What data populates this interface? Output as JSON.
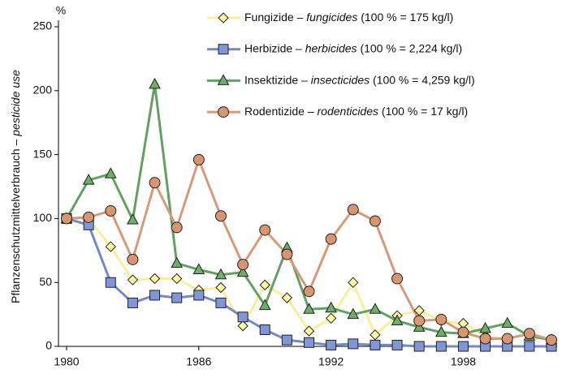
{
  "chart_data": {
    "type": "line",
    "y_unit": "%",
    "ylabel": "Pflanzenschutzmittelverbrauch",
    "ylabel_en": "pesticide use",
    "separator": "–",
    "x": [
      1980,
      1981,
      1982,
      1983,
      1984,
      1985,
      1986,
      1987,
      1988,
      1989,
      1990,
      1991,
      1992,
      1993,
      1994,
      1995,
      1996,
      1997,
      1998,
      1999,
      2000,
      2001,
      2002
    ],
    "xlim": [
      1980,
      2002
    ],
    "xticks": [
      1980,
      1986,
      1992,
      1998
    ],
    "ylim": [
      0,
      250
    ],
    "yticks": [
      0,
      50,
      100,
      150,
      200,
      250
    ],
    "series": [
      {
        "name": "Fungizide",
        "name_en": "fungicides",
        "note": "(100 % = 175 kg/l)",
        "marker": "diamond",
        "color": "#f6ef9c",
        "marker_color": "#fff7a0",
        "values": [
          100,
          100,
          78,
          52,
          53,
          53,
          44,
          46,
          16,
          48,
          38,
          12,
          22,
          50,
          9,
          24,
          28,
          20,
          18,
          8,
          6,
          10,
          5
        ]
      },
      {
        "name": "Herbizide",
        "name_en": "herbicides",
        "note": "(100 % = 2,224 kg/l)",
        "marker": "square",
        "color": "#7489c6",
        "marker_color": "#7f97d8",
        "values": [
          100,
          95,
          50,
          34,
          40,
          38,
          40,
          34,
          23,
          13,
          5,
          3,
          1,
          2,
          1,
          1,
          0,
          0,
          0,
          0,
          0,
          0,
          0
        ]
      },
      {
        "name": "Insektizide",
        "name_en": "insecticides",
        "note": "(100 % = 4,259 kg/l)",
        "marker": "triangle",
        "color": "#63a163",
        "marker_color": "#6fae6a",
        "values": [
          100,
          130,
          135,
          99,
          205,
          65,
          60,
          56,
          58,
          32,
          77,
          29,
          30,
          25,
          29,
          20,
          15,
          11,
          10,
          14,
          18,
          8,
          5
        ]
      },
      {
        "name": "Rodentizide",
        "name_en": "rodenticides",
        "note": "(100 % = 17 kg/l)",
        "marker": "circle",
        "color": "#d69a78",
        "marker_color": "#d9956f",
        "values": [
          100,
          101,
          106,
          68,
          128,
          93,
          146,
          102,
          64,
          91,
          72,
          43,
          84,
          107,
          98,
          53,
          20,
          21,
          11,
          6,
          6,
          10,
          5
        ]
      }
    ]
  }
}
